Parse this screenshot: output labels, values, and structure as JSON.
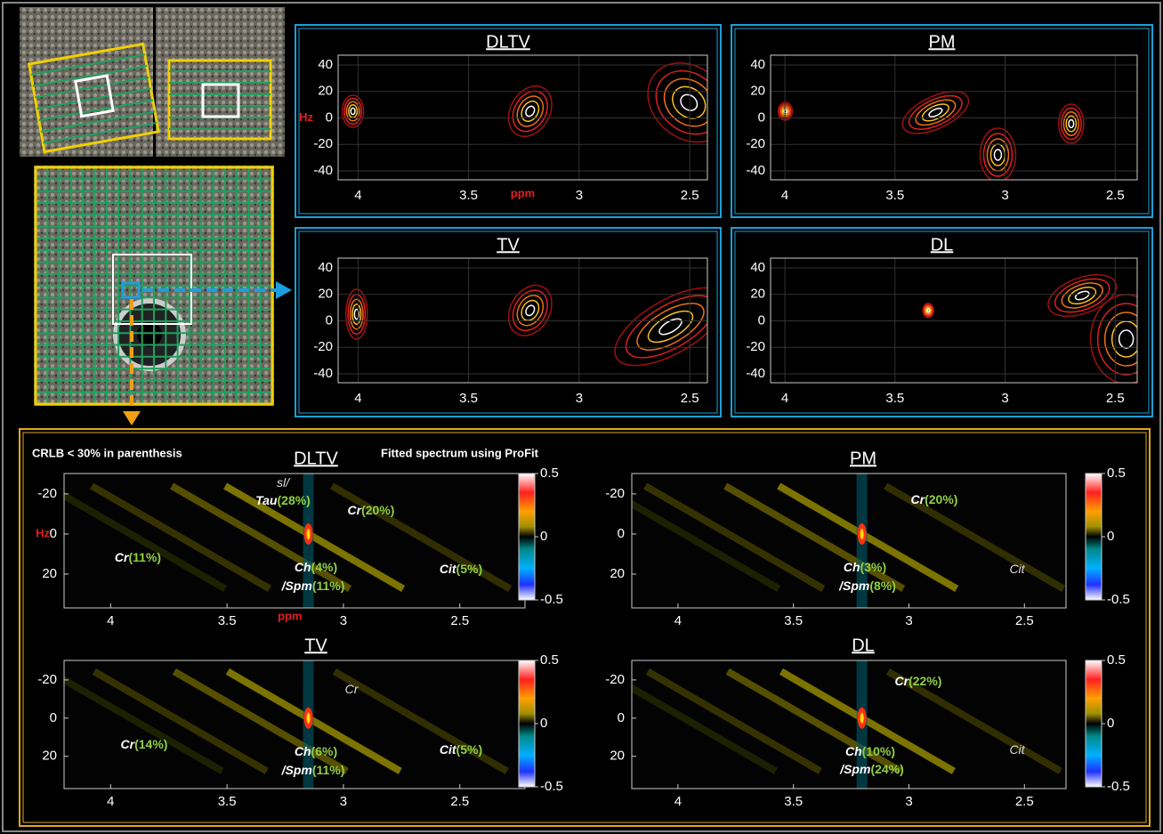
{
  "contour_maps": [
    {
      "title": "DLTV",
      "xlabel": "ppm",
      "ylabel": "Hz",
      "xlim": [
        4.09,
        2.42
      ],
      "ylim": [
        -46.7,
        47.4
      ],
      "xticks": [
        4,
        3.5,
        3,
        2.5
      ],
      "yticks": [
        40,
        20,
        0,
        -20,
        -40
      ]
    },
    {
      "title": "PM",
      "xlim": [
        4.065,
        2.4
      ],
      "ylim": [
        -46.7,
        47.4
      ],
      "xticks": [
        4,
        3.5,
        3,
        2.5
      ],
      "yticks": [
        40,
        20,
        0,
        -20,
        -40
      ]
    },
    {
      "title": "TV",
      "xlim": [
        4.09,
        2.42
      ],
      "ylim": [
        -46.7,
        47.4
      ],
      "xticks": [
        4,
        3.5,
        3,
        2.5
      ],
      "yticks": [
        40,
        20,
        0,
        -20,
        -40
      ]
    },
    {
      "title": "DL",
      "xlim": [
        4.065,
        2.4
      ],
      "ylim": [
        -46.7,
        47.4
      ],
      "xticks": [
        4,
        3.5,
        3,
        2.5
      ],
      "yticks": [
        40,
        20,
        0,
        -20,
        -40
      ]
    }
  ],
  "fitted_spectra": {
    "note": "CRLB < 30% in parenthesis",
    "method": "Fitted spectrum using ProFit",
    "clim": [
      -0.5,
      0.5
    ],
    "cticks": [
      0.5,
      0,
      -0.5
    ],
    "panels": [
      {
        "title": "DLTV",
        "xlabel": "ppm",
        "ylabel": "Hz",
        "xlim": [
          4.2,
          2.22
        ],
        "ylim": [
          -30.2,
          36.9
        ],
        "xticks": [
          4,
          3.5,
          3,
          2.5
        ],
        "yticks": [
          -20,
          0,
          20
        ],
        "labels": [
          {
            "name": "sl/"
          },
          {
            "name": "Tau",
            "crlb": "(28%)"
          },
          {
            "name": "Cr",
            "crlb": "(20%)"
          },
          {
            "name": "Cr",
            "crlb": "(11%)"
          },
          {
            "name": "Ch",
            "crlb": "(4%)"
          },
          {
            "name": "/Spm",
            "crlb": "(11%)"
          },
          {
            "name": "Cit",
            "crlb": "(5%)"
          }
        ]
      },
      {
        "title": "PM",
        "xlim": [
          4.2,
          2.32
        ],
        "ylim": [
          -30.2,
          36.9
        ],
        "xticks": [
          4,
          3.5,
          3,
          2.5
        ],
        "yticks": [
          -20,
          0,
          20
        ],
        "labels": [
          {
            "name": "Cr",
            "crlb": "(20%)"
          },
          {
            "name": "Ch",
            "crlb": "(3%)"
          },
          {
            "name": "/Spm",
            "crlb": "(8%)"
          },
          {
            "name": "Cit"
          }
        ]
      },
      {
        "title": "TV",
        "xlim": [
          4.2,
          2.22
        ],
        "ylim": [
          -30.2,
          36.9
        ],
        "xticks": [
          4,
          3.5,
          3,
          2.5
        ],
        "yticks": [
          -20,
          0,
          20
        ],
        "labels": [
          {
            "name": "Cr"
          },
          {
            "name": "Cr",
            "crlb": "(14%)"
          },
          {
            "name": "Ch",
            "crlb": "(6%)"
          },
          {
            "name": "/Spm",
            "crlb": "(11%)"
          },
          {
            "name": "Cit",
            "crlb": "(5%)"
          }
        ]
      },
      {
        "title": "DL",
        "xlim": [
          4.2,
          2.32
        ],
        "ylim": [
          -30.2,
          36.9
        ],
        "xticks": [
          4,
          3.5,
          3,
          2.5
        ],
        "yticks": [
          -20,
          0,
          20
        ],
        "labels": [
          {
            "name": "Cr",
            "crlb": "(22%)"
          },
          {
            "name": "Ch",
            "crlb": "(10%)"
          },
          {
            "name": "/Spm",
            "crlb": "(24%)"
          },
          {
            "name": "Cit"
          }
        ]
      }
    ]
  }
}
